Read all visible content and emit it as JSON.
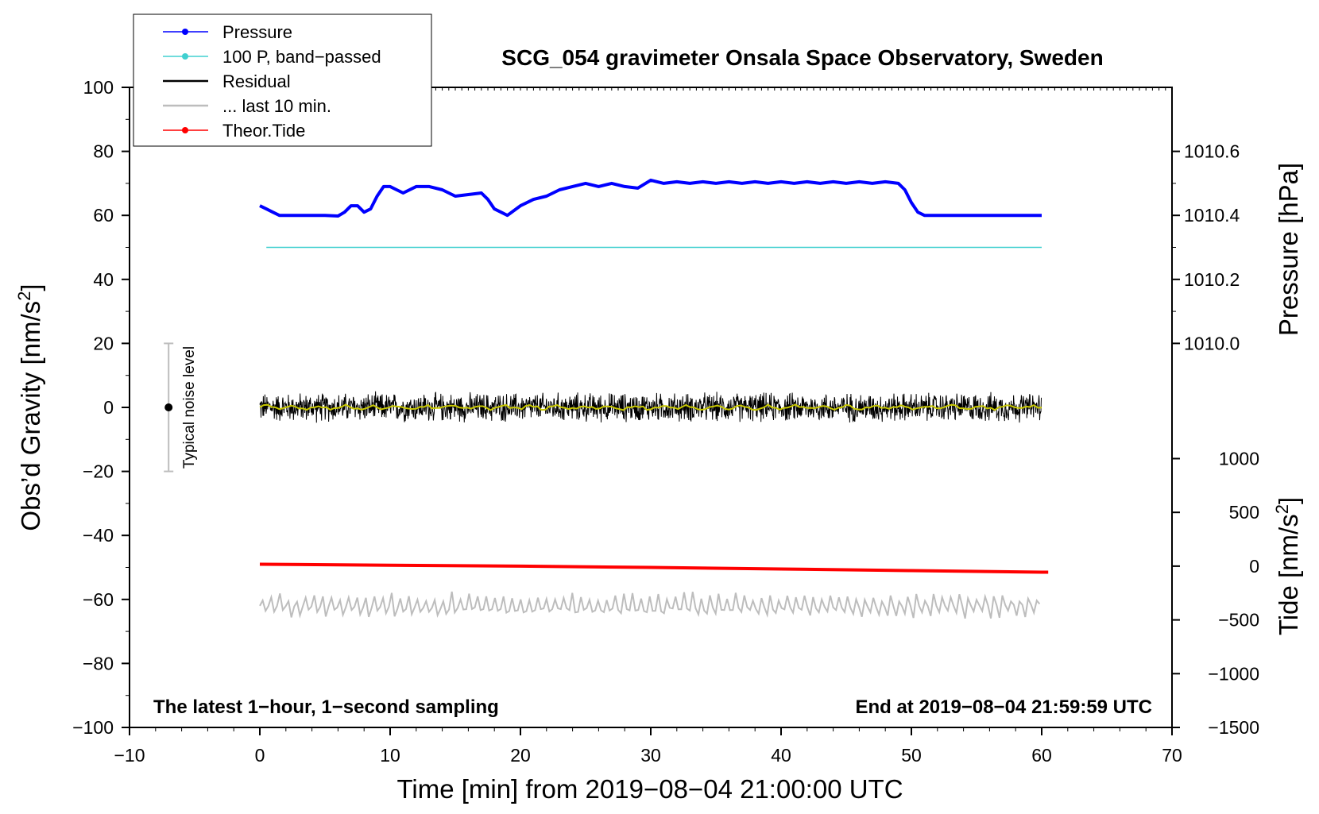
{
  "chart_data": {
    "type": "line",
    "title": "SCG_054 gravimeter Onsala Space Observatory, Sweden",
    "subtitle_left": "The latest 1−hour, 1−second sampling",
    "subtitle_right": "End at 2019−08−04 21:59:59 UTC",
    "xlabel": "Time [min] from 2019−08−04 21:00:00 UTC",
    "ylabel_main": "Obs’d Gravity [nm/s",
    "ylabel_main_sup": "2",
    "ylabel_main_end": "]",
    "ylabel_pressure": "Pressure [hPa]",
    "ylabel_tide": "Tide [nm/s",
    "ylabel_tide_sup": "2",
    "ylabel_tide_end": "]",
    "xlim": [
      -10,
      70
    ],
    "ylim": [
      -100,
      100
    ],
    "x_ticks": [
      -10,
      0,
      10,
      20,
      30,
      40,
      50,
      60,
      70
    ],
    "x_tick_labels": [
      "−10",
      "0",
      "10",
      "20",
      "30",
      "40",
      "50",
      "60",
      "70"
    ],
    "y_ticks": [
      -100,
      -80,
      -60,
      -40,
      -20,
      0,
      20,
      40,
      60,
      80,
      100
    ],
    "y_tick_labels": [
      "−100",
      "−80",
      "−60",
      "−40",
      "−20",
      "0",
      "20",
      "40",
      "60",
      "80",
      "100"
    ],
    "pressure_axis": {
      "ticks": [
        1010.0,
        1010.2,
        1010.4,
        1010.6
      ],
      "tick_labels": [
        "1010.0",
        "1010.2",
        "1010.4",
        "1010.6"
      ],
      "gravity_equiv": [
        20,
        40,
        60,
        80
      ]
    },
    "tide_axis": {
      "ticks": [
        -1500,
        -1000,
        -500,
        0,
        500,
        1000
      ],
      "tick_labels": [
        "−1500",
        "−1000",
        "−500",
        "0",
        "500",
        "1000"
      ],
      "gravity_equiv": [
        -100,
        -83.2,
        -66.4,
        -49.6,
        -32.8,
        -16
      ]
    },
    "legend": {
      "placement": "top-left",
      "entries": [
        {
          "label": "Pressure",
          "color": "#0000ff",
          "marker": true
        },
        {
          "label": "100 P, band−passed",
          "color": "#40d0d0",
          "marker": true
        },
        {
          "label": "Residual",
          "color": "#000000",
          "marker": false
        },
        {
          "label": "... last 10 min.",
          "color": "#bdbdbd",
          "marker": false
        },
        {
          "label": "Theor.Tide",
          "color": "#ff0000",
          "marker": true
        }
      ]
    },
    "noise_indicator": {
      "label": "Typical noise level",
      "x": -7,
      "center": 0,
      "range": [
        -20,
        20
      ]
    },
    "series": [
      {
        "name": "Pressure",
        "color": "#0000ff",
        "x": [
          0,
          0.5,
          1,
          1.5,
          2,
          3,
          4,
          5,
          6,
          6.5,
          7,
          7.5,
          8,
          8.5,
          9,
          9.5,
          10,
          10.5,
          11,
          12,
          13,
          14,
          15,
          16,
          17,
          17.5,
          18,
          19,
          20,
          21,
          22,
          23,
          24,
          25,
          26,
          27,
          28,
          29,
          30,
          31,
          32,
          33,
          34,
          35,
          36,
          37,
          38,
          39,
          40,
          41,
          42,
          43,
          44,
          45,
          46,
          47,
          48,
          49,
          49.5,
          50,
          50.5,
          51,
          52,
          55,
          57,
          58,
          59,
          60
        ],
        "values": [
          63,
          62,
          61,
          60,
          60,
          60,
          60,
          60,
          59.8,
          61,
          63,
          63,
          61,
          62,
          66,
          69,
          69,
          68,
          67,
          69,
          69,
          68,
          66,
          66.5,
          67,
          65,
          62,
          60,
          63,
          65,
          66,
          68,
          69,
          70,
          69,
          70,
          69,
          68.5,
          71,
          70,
          70.5,
          70,
          70.5,
          70,
          70.5,
          70,
          70.5,
          70,
          70.5,
          70,
          70.5,
          70,
          70.5,
          70,
          70.5,
          70,
          70.5,
          70,
          68,
          64,
          61,
          60,
          60,
          60,
          60,
          60,
          60,
          60
        ]
      },
      {
        "name": "100 P, band−passed",
        "color": "#40d0d0",
        "x": [
          0.5,
          60
        ],
        "values": [
          50,
          50
        ]
      },
      {
        "name": "Residual",
        "color": "#000000",
        "x_range": [
          0,
          60
        ],
        "center": 0,
        "amplitude": 3.5
      },
      {
        "name": "Residual smoothed",
        "color": "#c8c800",
        "x_range": [
          0,
          60
        ],
        "center": 0,
        "amplitude": 0.8
      },
      {
        "name": "... last 10 min.",
        "color": "#bdbdbd",
        "x_range": [
          0,
          60
        ],
        "center": -62,
        "amplitude": 3.5
      },
      {
        "name": "Theor.Tide",
        "color": "#ff0000",
        "x": [
          0,
          10,
          20,
          30,
          40,
          50,
          60,
          60.5
        ],
        "values": [
          -49,
          -49.3,
          -49.6,
          -50,
          -50.5,
          -51,
          -51.5,
          -51.5
        ]
      }
    ]
  }
}
